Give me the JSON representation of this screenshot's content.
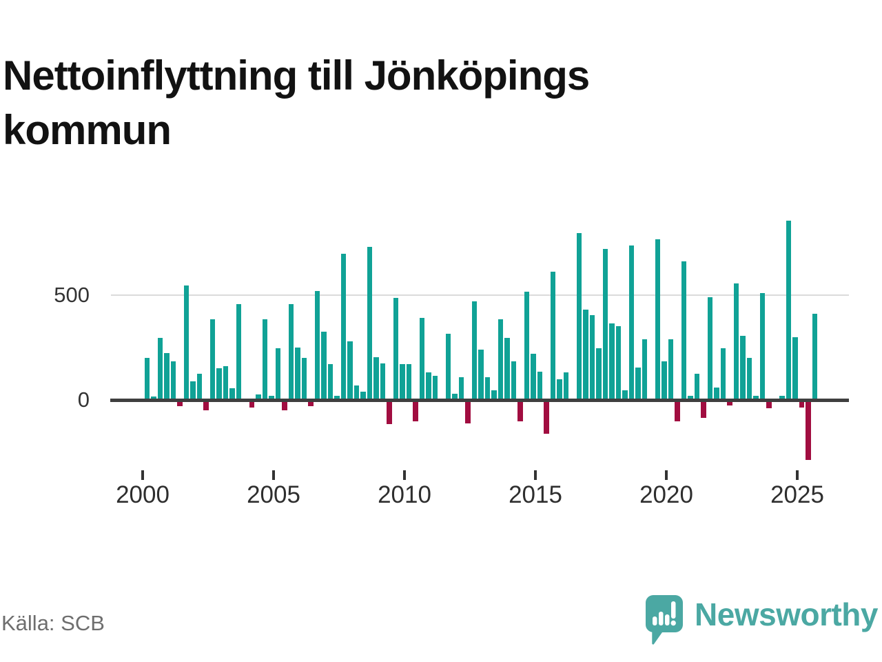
{
  "title": "Nettoinflyttning till Jönköpings kommun",
  "title_lines": [
    "Nettoinflyttning till Jönköpings",
    "kommun"
  ],
  "source": "Källa: SCB",
  "logo": {
    "text": "Newsworthy"
  },
  "colors": {
    "positive": "#10A296",
    "negative": "#A10D40",
    "axis": "#3F3F3F",
    "gridline": "#DBDBDB",
    "title": "#121212",
    "label": "#333333",
    "source": "#6E6E6E",
    "logo": "#4BA8A3"
  },
  "chart_data": {
    "type": "bar",
    "title": "Nettoinflyttning till Jönköpings kommun",
    "xlabel": "",
    "ylabel": "",
    "legend": null,
    "grid": "single horizontal gridline at 500",
    "y_gridlines": [
      500,
      0
    ],
    "y_tick_labels": [
      "500",
      "0"
    ],
    "ylim": [
      -330,
      900
    ],
    "x_ticks": [
      2000,
      2005,
      2010,
      2015,
      2020,
      2025
    ],
    "x_tick_labels": [
      "2000",
      "2005",
      "2010",
      "2015",
      "2020",
      "2025"
    ],
    "x": [
      "2000 Q1",
      "2000 Q2",
      "2000 Q3",
      "2000 Q4",
      "2001 Q1",
      "2001 Q2",
      "2001 Q3",
      "2001 Q4",
      "2002 Q1",
      "2002 Q2",
      "2002 Q3",
      "2002 Q4",
      "2003 Q1",
      "2003 Q2",
      "2003 Q3",
      "2003 Q4",
      "2004 Q1",
      "2004 Q2",
      "2004 Q3",
      "2004 Q4",
      "2005 Q1",
      "2005 Q2",
      "2005 Q3",
      "2005 Q4",
      "2006 Q1",
      "2006 Q2",
      "2006 Q3",
      "2006 Q4",
      "2007 Q1",
      "2007 Q2",
      "2007 Q3",
      "2007 Q4",
      "2008 Q1",
      "2008 Q2",
      "2008 Q3",
      "2008 Q4",
      "2009 Q1",
      "2009 Q2",
      "2009 Q3",
      "2009 Q4",
      "2010 Q1",
      "2010 Q2",
      "2010 Q3",
      "2010 Q4",
      "2011 Q1",
      "2011 Q2",
      "2011 Q3",
      "2011 Q4",
      "2012 Q1",
      "2012 Q2",
      "2012 Q3",
      "2012 Q4",
      "2013 Q1",
      "2013 Q2",
      "2013 Q3",
      "2013 Q4",
      "2014 Q1",
      "2014 Q2",
      "2014 Q3",
      "2014 Q4",
      "2015 Q1",
      "2015 Q2",
      "2015 Q3",
      "2015 Q4",
      "2016 Q1",
      "2016 Q2",
      "2016 Q3",
      "2016 Q4",
      "2017 Q1",
      "2017 Q2",
      "2017 Q3",
      "2017 Q4",
      "2018 Q1",
      "2018 Q2",
      "2018 Q3",
      "2018 Q4",
      "2019 Q1",
      "2019 Q2",
      "2019 Q3",
      "2019 Q4",
      "2020 Q1",
      "2020 Q2",
      "2020 Q3",
      "2020 Q4",
      "2021 Q1",
      "2021 Q2",
      "2021 Q3",
      "2021 Q4",
      "2022 Q1",
      "2022 Q2",
      "2022 Q3",
      "2022 Q4",
      "2023 Q1",
      "2023 Q2",
      "2023 Q3",
      "2023 Q4",
      "2024 Q1",
      "2024 Q2",
      "2024 Q3",
      "2024 Q4",
      "2025 Q1",
      "2025 Q2",
      "2025 Q3"
    ],
    "values": [
      200,
      15,
      295,
      225,
      185,
      -30,
      545,
      90,
      125,
      -50,
      385,
      150,
      160,
      55,
      455,
      0,
      -35,
      25,
      385,
      20,
      245,
      -50,
      455,
      250,
      200,
      -30,
      520,
      325,
      170,
      20,
      695,
      280,
      70,
      40,
      730,
      205,
      175,
      -115,
      485,
      170,
      170,
      -100,
      390,
      130,
      115,
      0,
      315,
      30,
      110,
      -110,
      470,
      240,
      110,
      45,
      385,
      295,
      185,
      -100,
      515,
      220,
      135,
      -160,
      610,
      100,
      130,
      0,
      795,
      430,
      405,
      245,
      720,
      365,
      350,
      45,
      735,
      155,
      290,
      0,
      765,
      185,
      290,
      -100,
      660,
      20,
      125,
      -85,
      490,
      60,
      245,
      -25,
      555,
      305,
      200,
      20,
      510,
      -40,
      0,
      20,
      855,
      300,
      -35,
      -285,
      410
    ]
  }
}
